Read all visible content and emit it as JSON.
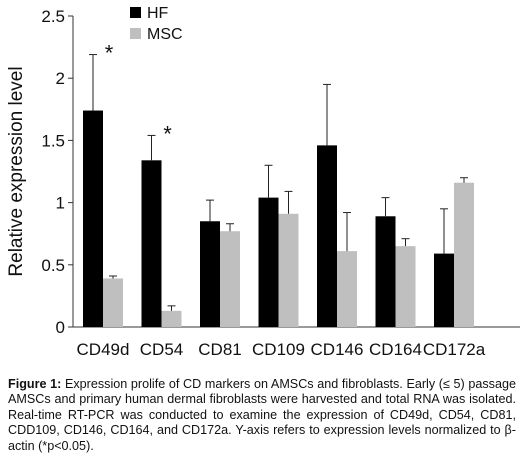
{
  "chart_data": {
    "type": "bar",
    "categories": [
      "CD49d",
      "CD54",
      "CD81",
      "CD109",
      "CD146",
      "CD164",
      "CD172a"
    ],
    "series": [
      {
        "name": "HF",
        "color": "#000000",
        "values": [
          1.74,
          1.34,
          0.85,
          1.04,
          1.46,
          0.89,
          0.59
        ],
        "error": [
          0.45,
          0.2,
          0.17,
          0.26,
          0.49,
          0.15,
          0.36
        ]
      },
      {
        "name": "MSC",
        "color": "#bfbfbf",
        "values": [
          0.39,
          0.13,
          0.77,
          0.91,
          0.61,
          0.65,
          1.16
        ],
        "error": [
          0.02,
          0.04,
          0.06,
          0.18,
          0.31,
          0.06,
          0.04
        ]
      }
    ],
    "annotations": [
      {
        "category": "CD49d",
        "text": "*"
      },
      {
        "category": "CD54",
        "text": "*"
      }
    ],
    "ylabel": "Relative expression level",
    "ylim": [
      0,
      2.5
    ],
    "yticks": [
      "0",
      "0.5",
      "1",
      "1.5",
      "2",
      "2.5"
    ],
    "legend_position": "top-left",
    "grid": false
  },
  "caption": {
    "label": "Figure 1:",
    "text": " Expression prolife of CD markers on AMSCs and fibroblasts. Early (≤ 5) passage AMSCs and primary human dermal fibroblasts were harvested and total RNA was isolated. Real-time RT-PCR was conducted to examine the expression of CD49d, CD54, CD81, CDD109, CD146, CD164, and CD172a. Y-axis refers to expression levels normalized to β-actin (*p<0.05)."
  }
}
